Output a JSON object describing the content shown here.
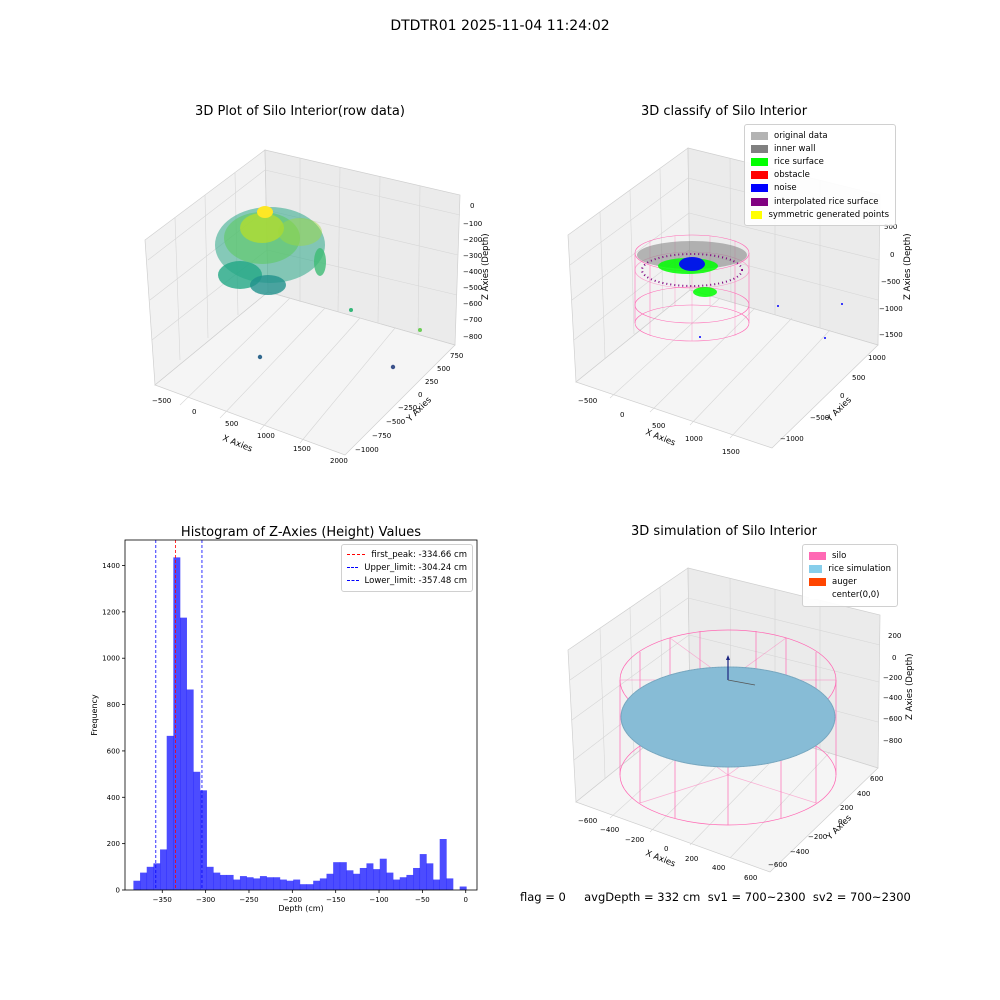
{
  "suptitle": "DTDTR01 2025-11-04 11:24:02",
  "plot1": {
    "title": "3D Plot of Silo Interior(row data)",
    "xlabel": "X Axies",
    "ylabel": "Y Axies",
    "zlabel": "Z Axies (Depth)",
    "xticks": [
      "−500",
      "0",
      "500",
      "1000",
      "1500",
      "2000"
    ],
    "yticks": [
      "−1000",
      "−750",
      "−500",
      "−250",
      "0",
      "250",
      "500",
      "750"
    ],
    "zticks": [
      "0",
      "−100",
      "−200",
      "−300",
      "−400",
      "−500",
      "−600",
      "−700",
      "−800"
    ]
  },
  "plot2": {
    "title": "3D classify of Silo Interior",
    "xlabel": "X Axies",
    "ylabel": "Y Axies",
    "zlabel": "Z Axies (Depth)",
    "xticks": [
      "−500",
      "0",
      "500",
      "1000",
      "1500"
    ],
    "yticks": [
      "−1000",
      "−500",
      "0",
      "500",
      "1000"
    ],
    "zticks": [
      "500",
      "0",
      "−500",
      "−1000",
      "−1500"
    ],
    "legend": [
      {
        "label": "original data",
        "color": "#b3b3b3"
      },
      {
        "label": "inner wall",
        "color": "#808080"
      },
      {
        "label": "rice surface",
        "color": "#00ff00"
      },
      {
        "label": "obstacle",
        "color": "#ff0000"
      },
      {
        "label": "noise",
        "color": "#0000ff"
      },
      {
        "label": "interpolated rice surface",
        "color": "#800080"
      },
      {
        "label": "symmetric generated points",
        "color": "#ffff00"
      }
    ]
  },
  "plot4": {
    "title": "3D simulation of Silo Interior",
    "xlabel": "X Axies",
    "ylabel": "Y Axies",
    "zlabel": "Z Axies (Depth)",
    "xticks": [
      "−600",
      "−400",
      "−200",
      "0",
      "200",
      "400",
      "600"
    ],
    "yticks": [
      "−600",
      "−400",
      "−200",
      "0",
      "200",
      "400",
      "600"
    ],
    "zticks": [
      "200",
      "0",
      "−200",
      "−400",
      "−600",
      "−800"
    ],
    "legend": [
      {
        "label": "silo",
        "color": "#ff69b4"
      },
      {
        "label": "rice simulation",
        "color": "#87ceeb"
      },
      {
        "label": "auger",
        "color": "#ff4500"
      },
      {
        "label": "center(0,0)",
        "color": "#ffffff"
      }
    ]
  },
  "status": "flag = 0     avgDepth = 332 cm  sv1 = 700~2300  sv2 = 700~2300",
  "chart_data": {
    "type": "bar",
    "title": "Histogram of Z-Axies (Height) Values",
    "xlabel": "Depth (cm)",
    "ylabel": "Frequency",
    "xlim": [
      -393,
      13
    ],
    "ylim": [
      0,
      1510
    ],
    "xticks": [
      -350,
      -300,
      -250,
      -200,
      -150,
      -100,
      -50,
      0
    ],
    "xtick_labels": [
      "−350",
      "−300",
      "−250",
      "−200",
      "−150",
      "−100",
      "−50",
      "0"
    ],
    "yticks": [
      0,
      200,
      400,
      600,
      800,
      1000,
      1200,
      1400
    ],
    "bin_width": 7.68,
    "bins_start": -383.3,
    "values": [
      40,
      75,
      100,
      115,
      175,
      665,
      1435,
      1175,
      865,
      510,
      430,
      100,
      75,
      65,
      65,
      45,
      60,
      55,
      50,
      60,
      55,
      55,
      45,
      40,
      45,
      25,
      25,
      40,
      50,
      70,
      120,
      120,
      85,
      70,
      95,
      115,
      90,
      135,
      75,
      45,
      55,
      65,
      95,
      155,
      115,
      45,
      220,
      50,
      0,
      15
    ],
    "bar_color": "#0000ff",
    "bar_alpha": 0.7,
    "lines": [
      {
        "label": "first_peak: -334.66 cm",
        "x": -334.66,
        "color": "#ff0000"
      },
      {
        "label": "Upper_limit: -304.24 cm",
        "x": -304.24,
        "color": "#0000ff"
      },
      {
        "label": "Lower_limit: -357.48 cm",
        "x": -357.48,
        "color": "#0000ff"
      }
    ],
    "legend_position": "upper right"
  }
}
